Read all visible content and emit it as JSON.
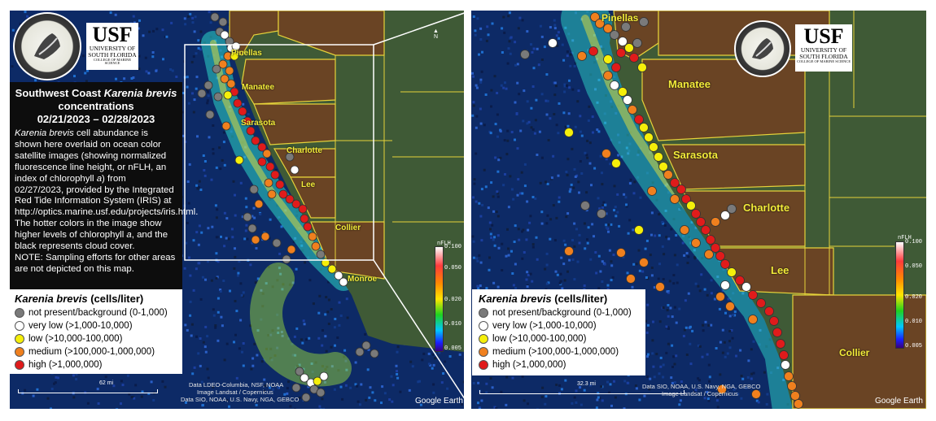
{
  "info": {
    "title_part1": "Southwest Coast ",
    "title_species": "Karenia brevis",
    "title_part2": "concentrations",
    "date_range": "02/21/2023 – 02/28/2023",
    "body_species": "Karenia brevis",
    "body_text": " cell abundance is shown here overlaid on ocean color satellite images (showing normalized fluorescence line height, or nFLH, an index of chlorophyll ",
    "body_italic_a": "a",
    "body_text2": ") from 02/27/2023, provided by the Integrated Red Tide Information System (IRIS) at http://optics.marine.usf.edu/projects/iris.html. The hotter colors in the image show higher levels of chlorophyll ",
    "body_text3": ", and the black represents cloud cover.",
    "note": "NOTE: Sampling efforts for other areas are not depicted on this map."
  },
  "legend": {
    "species": "Karenia brevis",
    "unit": " (cells/liter)",
    "items": [
      {
        "label": "not present/background (0-1,000)",
        "color": "#7a7a7a"
      },
      {
        "label": "very low (>1,000-10,000)",
        "color": "#ffffff"
      },
      {
        "label": "low (>10,000-100,000)",
        "color": "#f5ef0a"
      },
      {
        "label": "medium (>100,000-1,000,000)",
        "color": "#f0801e"
      },
      {
        "label": "high (>1,000,000)",
        "color": "#e01b1b"
      }
    ]
  },
  "logos": {
    "usf_main": "USF",
    "usf_sub1": "UNIVERSITY OF",
    "usf_sub2": "SOUTH FLORIDA",
    "usf_sub3": "COLLEGE OF MARINE SCIENCE",
    "fwc_ring": "FLORIDA FISH AND WILDLIFE CONSERVATION COMMISSION"
  },
  "left_map": {
    "counties": [
      "Pinellas",
      "Manatee",
      "Sarasota",
      "Charlotte",
      "Lee",
      "Collier",
      "Monroe"
    ],
    "scale_label": "62 mi",
    "attribution1": "Data LDEO-Columbia, NSF, NOAA",
    "attribution2": "Image Landsat / Copernicus",
    "attribution3": "Data SIO, NOAA, U.S. Navy, NGA, GEBCO",
    "google_earth": "Google Earth"
  },
  "right_map": {
    "counties": [
      "Pinellas",
      "Manatee",
      "Sarasota",
      "Charlotte",
      "Lee",
      "Collier"
    ],
    "scale_label": "32.3 mi",
    "attribution1": "Data SIO, NOAA, U.S. Navy, NGA, GEBCO",
    "attribution2": "Image Landsat / Copernicus",
    "google_earth": "Google Earth"
  },
  "colorbar": {
    "title": "nFLH",
    "ticks": [
      "0.100",
      "0.050",
      "0.020",
      "0.010",
      "0.005"
    ]
  },
  "compass": {
    "north": "N"
  }
}
